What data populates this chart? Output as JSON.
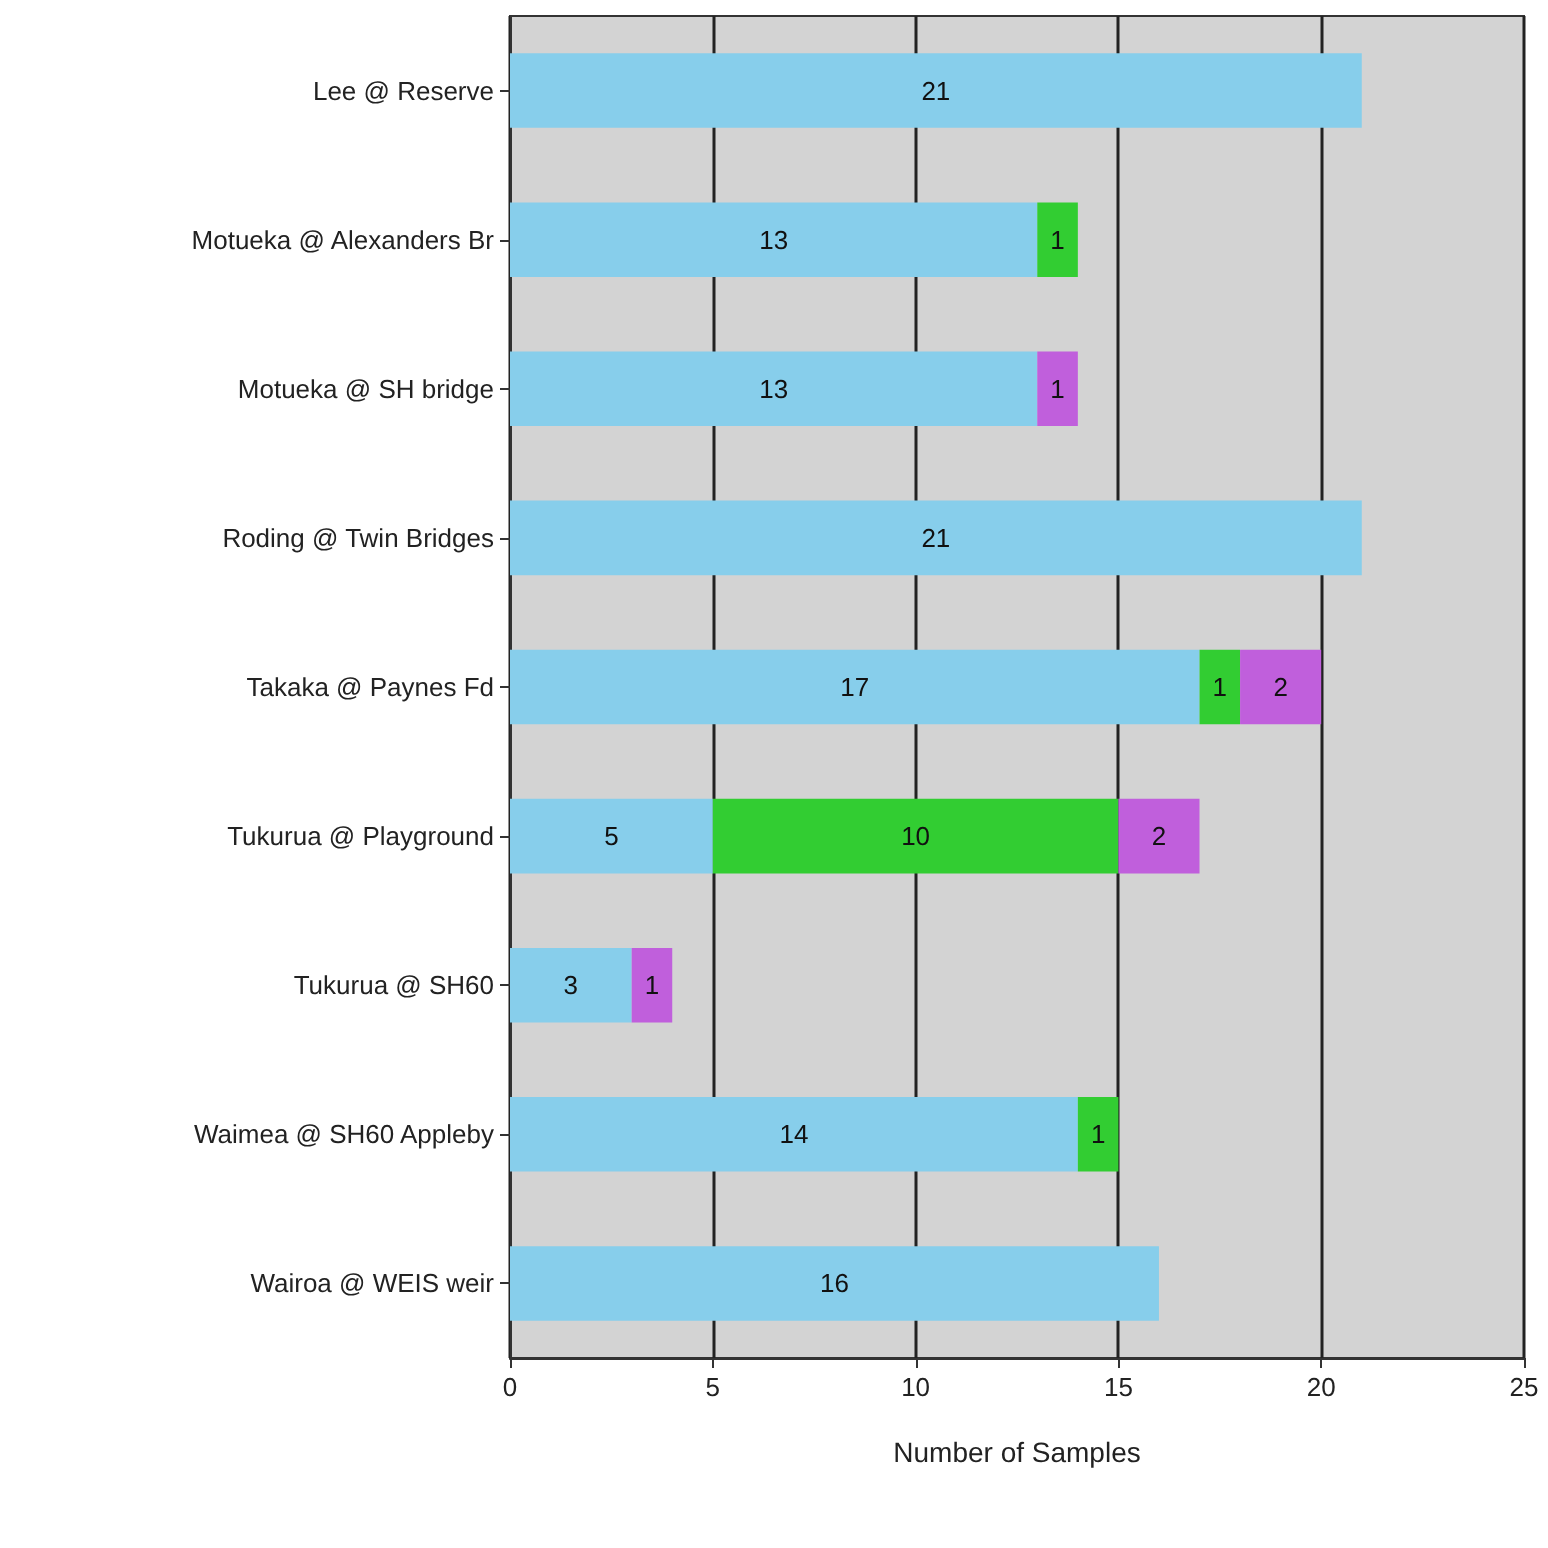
{
  "chart_data": {
    "type": "bar",
    "orientation": "horizontal",
    "stacked": true,
    "xlabel": "Number of Samples",
    "categories": [
      "Lee @ Reserve",
      "Motueka @ Alexanders Br",
      "Motueka @ SH bridge",
      "Roding @ Twin Bridges",
      "Takaka @ Paynes Fd",
      "Tukurua @ Playground",
      "Tukurua @ SH60",
      "Waimea @ SH60 Appleby",
      "Wairoa @ WEIS weir"
    ],
    "series": [
      {
        "color": "#87ceeb",
        "values": [
          21,
          13,
          13,
          21,
          17,
          5,
          3,
          14,
          16
        ]
      },
      {
        "color": "#32cd32",
        "values": [
          null,
          1,
          null,
          null,
          1,
          10,
          null,
          1,
          null
        ]
      },
      {
        "color": "#c05fdc",
        "values": [
          null,
          null,
          1,
          null,
          2,
          2,
          1,
          null,
          null
        ]
      }
    ],
    "xlim": [
      0,
      25
    ],
    "xticks": [
      0,
      5,
      10,
      15,
      20,
      25
    ],
    "grid": "x",
    "data_labels": true
  }
}
